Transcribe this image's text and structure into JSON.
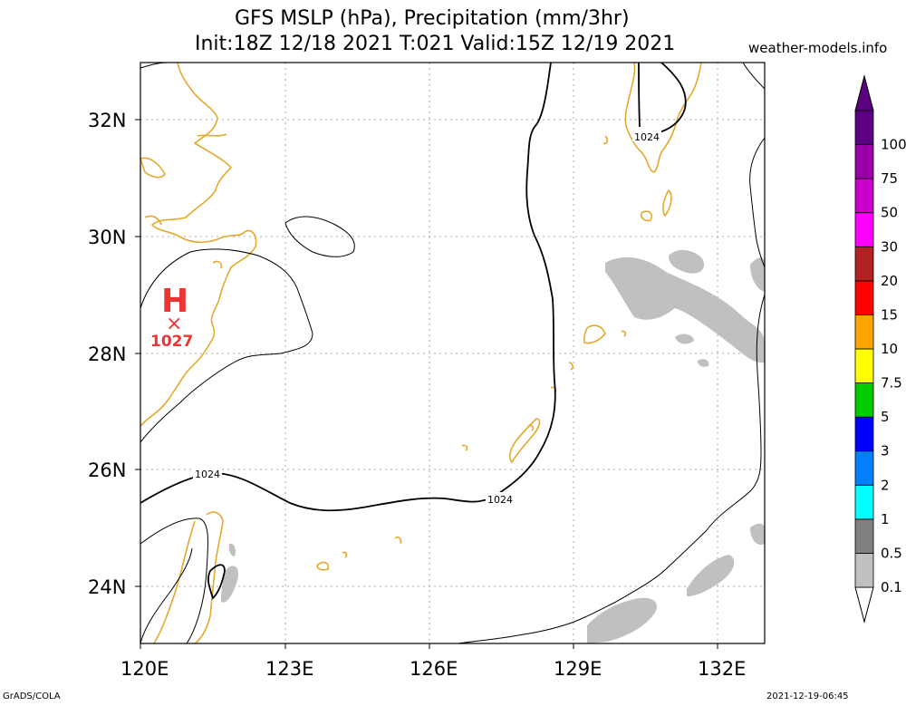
{
  "header": {
    "title_line1": "GFS MSLP (hPa), Precipitation (mm/3hr)",
    "title_line2": "Init:18Z 12/18 2021 T:021 Valid:15Z 12/19 2021",
    "credit": "weather-models.info"
  },
  "footer": {
    "left": "GrADS/COLA",
    "right": "2021-12-19-06:45"
  },
  "map": {
    "lon_labels": [
      "120E",
      "123E",
      "126E",
      "129E",
      "132E"
    ],
    "lat_labels": [
      "32N",
      "30N",
      "28N",
      "26N",
      "24N"
    ],
    "isobar_labels": [
      {
        "text": "1024",
        "id": "isobar-label-west"
      },
      {
        "text": "1024",
        "id": "isobar-label-center"
      },
      {
        "text": "1024",
        "id": "isobar-label-north"
      }
    ],
    "high_pressure": {
      "symbol": "H",
      "marker": "×",
      "value": "1027"
    },
    "colors": {
      "coast": "#e3a92d",
      "isobar": "#000000",
      "precip_light": "#c0c0c0",
      "high": "#ee3333",
      "grid": "#aaaaaa"
    }
  },
  "colorbar": {
    "levels": [
      "0.1",
      "0.5",
      "1",
      "2",
      "3",
      "5",
      "7.5",
      "10",
      "15",
      "20",
      "30",
      "50",
      "75",
      "100"
    ],
    "colors": [
      "#c0c0c0",
      "#808080",
      "#00ffff",
      "#0080ff",
      "#0000ff",
      "#00cc00",
      "#ffff00",
      "#ffa500",
      "#ff0000",
      "#b22222",
      "#ff00ff",
      "#cc00cc",
      "#9900aa",
      "#5a0080"
    ]
  }
}
